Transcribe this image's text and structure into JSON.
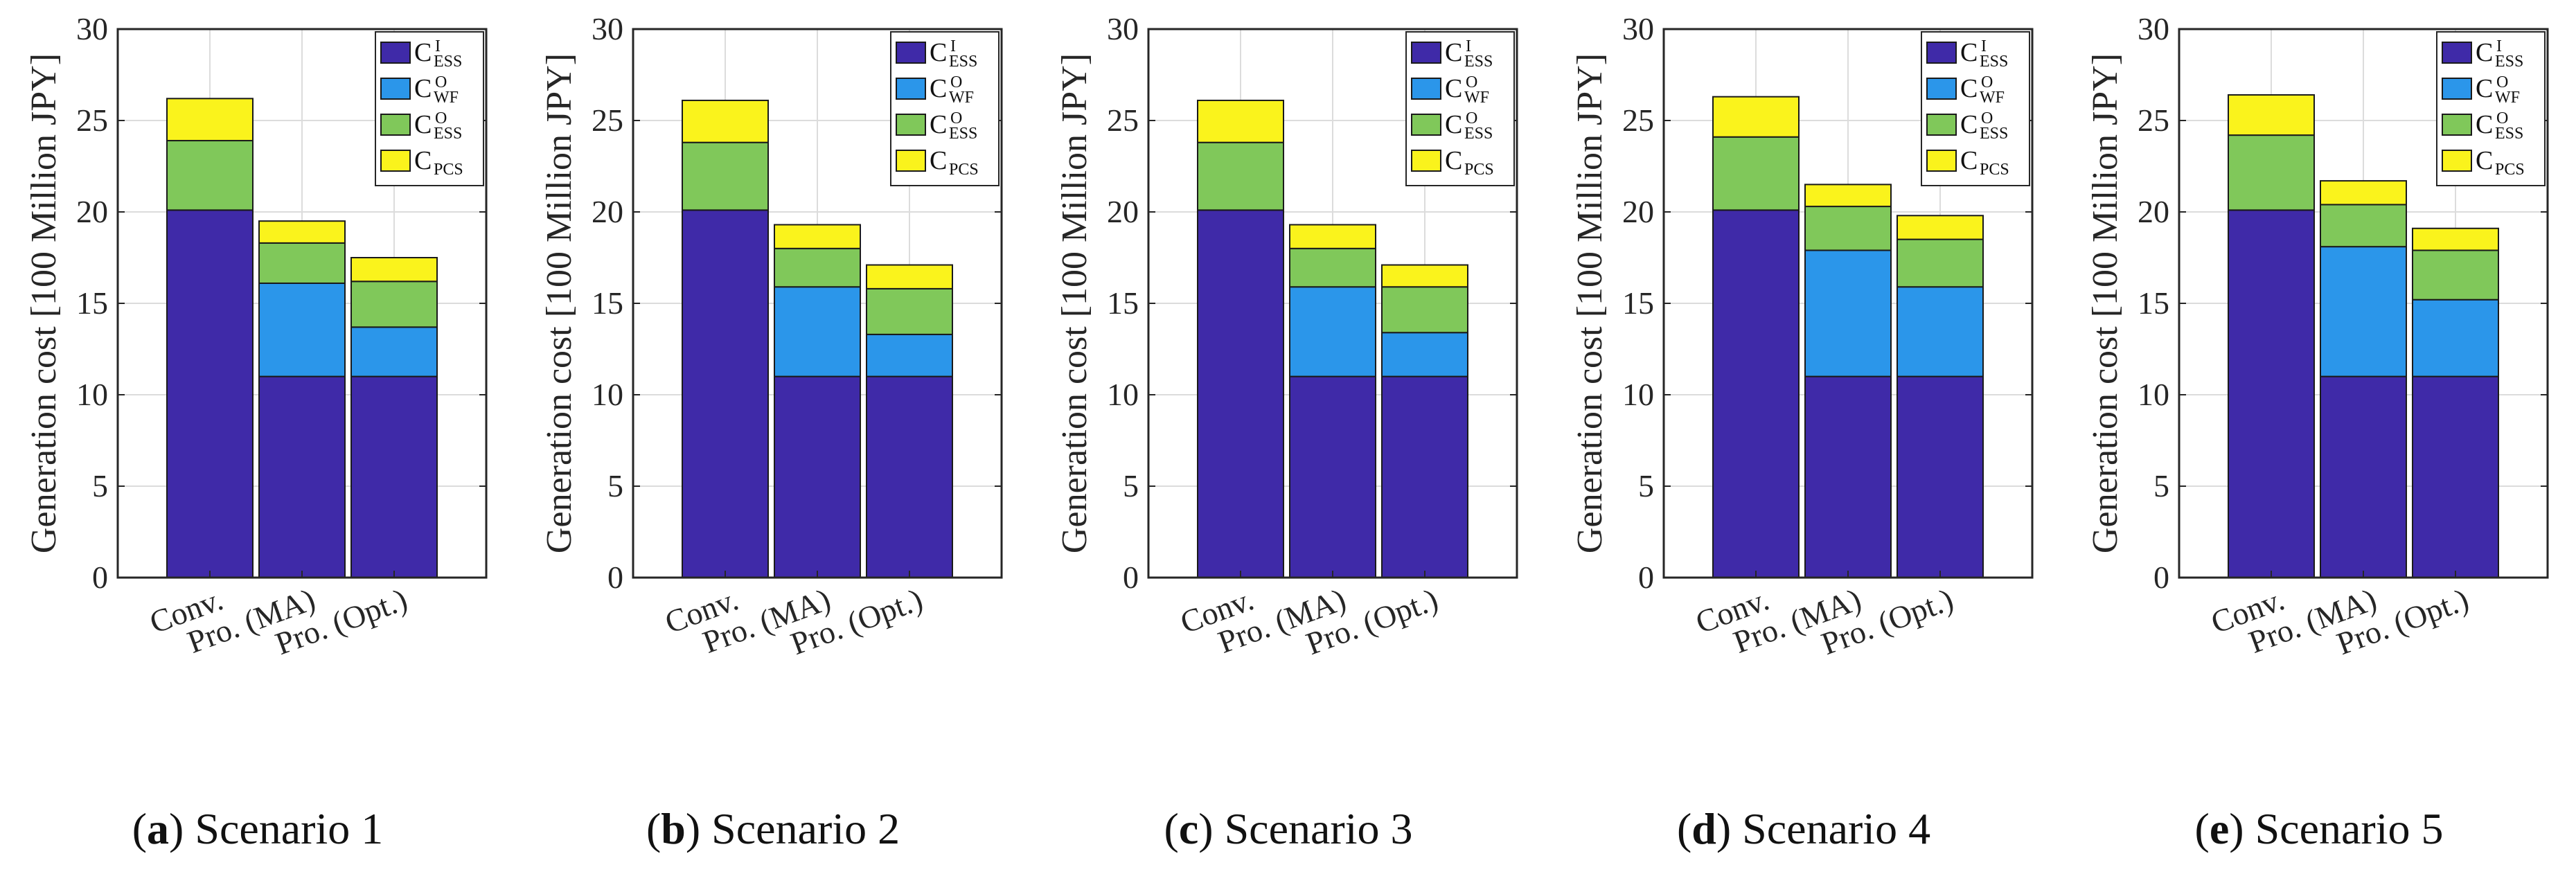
{
  "figure": {
    "captions": [
      {
        "letter": "a",
        "text": "Scenario 1"
      },
      {
        "letter": "b",
        "text": "Scenario 2"
      },
      {
        "letter": "c",
        "text": "Scenario 3"
      },
      {
        "letter": "d",
        "text": "Scenario 4"
      },
      {
        "letter": "e",
        "text": "Scenario 5"
      }
    ]
  },
  "chart_data": [
    {
      "type": "bar",
      "stacked": true,
      "title": "Scenario 1",
      "xlabel": "",
      "ylabel": "Generation cost [100 Million JPY]",
      "ylim": [
        0,
        30
      ],
      "yticks": [
        0,
        5,
        10,
        15,
        20,
        25,
        30
      ],
      "categories": [
        "Conv.",
        "Pro. (MA)",
        "Pro. (Opt.)"
      ],
      "grid": true,
      "legend_position": "top-right",
      "series": [
        {
          "name": "C",
          "sup": "I",
          "sub": "ESS",
          "color": "#3f2aa8",
          "values": [
            20.1,
            11.0,
            11.0
          ]
        },
        {
          "name": "C",
          "sup": "O",
          "sub": "WF",
          "color": "#2b96ea",
          "values": [
            0,
            5.1,
            2.7
          ]
        },
        {
          "name": "C",
          "sup": "O",
          "sub": "ESS",
          "color": "#80c85a",
          "values": [
            3.8,
            2.2,
            2.5
          ]
        },
        {
          "name": "C",
          "sup": "",
          "sub": "PCS",
          "color": "#faf31c",
          "values": [
            2.3,
            1.2,
            1.3
          ]
        }
      ]
    },
    {
      "type": "bar",
      "stacked": true,
      "title": "Scenario 2",
      "xlabel": "",
      "ylabel": "Generation cost [100 Million JPY]",
      "ylim": [
        0,
        30
      ],
      "yticks": [
        0,
        5,
        10,
        15,
        20,
        25,
        30
      ],
      "categories": [
        "Conv.",
        "Pro. (MA)",
        "Pro. (Opt.)"
      ],
      "grid": true,
      "legend_position": "top-right",
      "series": [
        {
          "name": "C",
          "sup": "I",
          "sub": "ESS",
          "color": "#3f2aa8",
          "values": [
            20.1,
            11.0,
            11.0
          ]
        },
        {
          "name": "C",
          "sup": "O",
          "sub": "WF",
          "color": "#2b96ea",
          "values": [
            0,
            4.9,
            2.3
          ]
        },
        {
          "name": "C",
          "sup": "O",
          "sub": "ESS",
          "color": "#80c85a",
          "values": [
            3.7,
            2.1,
            2.5
          ]
        },
        {
          "name": "C",
          "sup": "",
          "sub": "PCS",
          "color": "#faf31c",
          "values": [
            2.3,
            1.3,
            1.3
          ]
        }
      ]
    },
    {
      "type": "bar",
      "stacked": true,
      "title": "Scenario 3",
      "xlabel": "",
      "ylabel": "Generation cost [100 Million JPY]",
      "ylim": [
        0,
        30
      ],
      "yticks": [
        0,
        5,
        10,
        15,
        20,
        25,
        30
      ],
      "categories": [
        "Conv.",
        "Pro. (MA)",
        "Pro. (Opt.)"
      ],
      "grid": true,
      "legend_position": "top-right",
      "series": [
        {
          "name": "C",
          "sup": "I",
          "sub": "ESS",
          "color": "#3f2aa8",
          "values": [
            20.1,
            11.0,
            11.0
          ]
        },
        {
          "name": "C",
          "sup": "O",
          "sub": "WF",
          "color": "#2b96ea",
          "values": [
            0,
            4.9,
            2.4
          ]
        },
        {
          "name": "C",
          "sup": "O",
          "sub": "ESS",
          "color": "#80c85a",
          "values": [
            3.7,
            2.1,
            2.5
          ]
        },
        {
          "name": "C",
          "sup": "",
          "sub": "PCS",
          "color": "#faf31c",
          "values": [
            2.3,
            1.3,
            1.2
          ]
        }
      ]
    },
    {
      "type": "bar",
      "stacked": true,
      "title": "Scenario 4",
      "xlabel": "",
      "ylabel": "Generation cost [100 Million JPY]",
      "ylim": [
        0,
        30
      ],
      "yticks": [
        0,
        5,
        10,
        15,
        20,
        25,
        30
      ],
      "categories": [
        "Conv.",
        "Pro. (MA)",
        "Pro. (Opt.)"
      ],
      "grid": true,
      "legend_position": "top-right",
      "series": [
        {
          "name": "C",
          "sup": "I",
          "sub": "ESS",
          "color": "#3f2aa8",
          "values": [
            20.1,
            11.0,
            11.0
          ]
        },
        {
          "name": "C",
          "sup": "O",
          "sub": "WF",
          "color": "#2b96ea",
          "values": [
            0,
            6.9,
            4.9
          ]
        },
        {
          "name": "C",
          "sup": "O",
          "sub": "ESS",
          "color": "#80c85a",
          "values": [
            4.0,
            2.4,
            2.6
          ]
        },
        {
          "name": "C",
          "sup": "",
          "sub": "PCS",
          "color": "#faf31c",
          "values": [
            2.2,
            1.2,
            1.3
          ]
        }
      ]
    },
    {
      "type": "bar",
      "stacked": true,
      "title": "Scenario 5",
      "xlabel": "",
      "ylabel": "Generation cost [100 Million JPY]",
      "ylim": [
        0,
        30
      ],
      "yticks": [
        0,
        5,
        10,
        15,
        20,
        25,
        30
      ],
      "categories": [
        "Conv.",
        "Pro. (MA)",
        "Pro. (Opt.)"
      ],
      "grid": true,
      "legend_position": "top-right",
      "series": [
        {
          "name": "C",
          "sup": "I",
          "sub": "ESS",
          "color": "#3f2aa8",
          "values": [
            20.1,
            11.0,
            11.0
          ]
        },
        {
          "name": "C",
          "sup": "O",
          "sub": "WF",
          "color": "#2b96ea",
          "values": [
            0,
            7.1,
            4.2
          ]
        },
        {
          "name": "C",
          "sup": "O",
          "sub": "ESS",
          "color": "#80c85a",
          "values": [
            4.1,
            2.3,
            2.7
          ]
        },
        {
          "name": "C",
          "sup": "",
          "sub": "PCS",
          "color": "#faf31c",
          "values": [
            2.2,
            1.3,
            1.2
          ]
        }
      ]
    }
  ]
}
